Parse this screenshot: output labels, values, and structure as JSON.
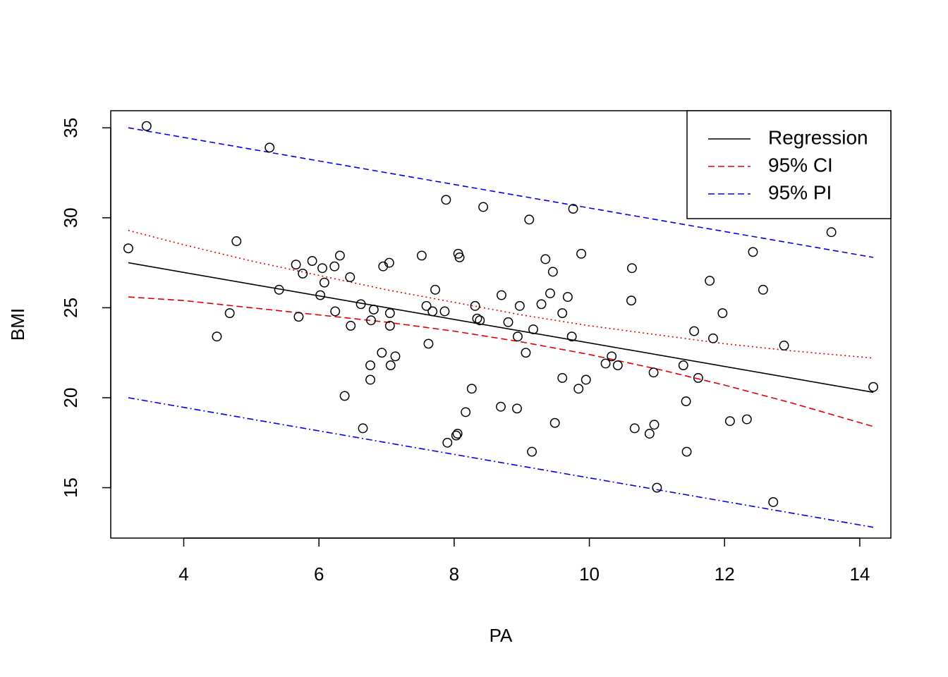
{
  "chart_data": {
    "type": "scatter",
    "xlabel": "PA",
    "ylabel": "BMI",
    "xlim": [
      2.92,
      14.46
    ],
    "ylim": [
      12.2,
      35.95
    ],
    "x_ticks": [
      4,
      6,
      8,
      10,
      12,
      14
    ],
    "y_ticks": [
      15,
      20,
      25,
      30,
      35
    ],
    "x_tick_labels": [
      "4",
      "6",
      "8",
      "10",
      "12",
      "14"
    ],
    "y_tick_labels": [
      "15",
      "20",
      "25",
      "30",
      "35"
    ],
    "legend": {
      "placement": "top-right",
      "entries": [
        {
          "label": "Regression",
          "color": "#000000",
          "dash": "solid"
        },
        {
          "label": "95% CI",
          "color": "#e00000",
          "dash": "dashed"
        },
        {
          "label": "95% PI",
          "color": "#0000e0",
          "dash": "dashed"
        }
      ]
    },
    "points": [
      [
        3.18,
        28.3
      ],
      [
        3.45,
        35.1
      ],
      [
        4.49,
        23.4
      ],
      [
        4.68,
        24.7
      ],
      [
        4.78,
        28.7
      ],
      [
        5.27,
        33.9
      ],
      [
        5.41,
        26.0
      ],
      [
        5.66,
        27.4
      ],
      [
        5.7,
        24.5
      ],
      [
        5.76,
        26.9
      ],
      [
        5.9,
        27.6
      ],
      [
        6.02,
        25.7
      ],
      [
        6.05,
        27.2
      ],
      [
        6.08,
        26.4
      ],
      [
        6.23,
        27.3
      ],
      [
        6.24,
        24.8
      ],
      [
        6.31,
        27.9
      ],
      [
        6.38,
        20.1
      ],
      [
        6.46,
        26.7
      ],
      [
        6.47,
        24.0
      ],
      [
        6.62,
        25.2
      ],
      [
        6.65,
        18.3
      ],
      [
        6.76,
        21.8
      ],
      [
        6.76,
        21.0
      ],
      [
        6.77,
        24.3
      ],
      [
        6.81,
        24.9
      ],
      [
        6.93,
        22.5
      ],
      [
        6.95,
        27.3
      ],
      [
        7.04,
        27.5
      ],
      [
        7.05,
        24.7
      ],
      [
        7.05,
        24.0
      ],
      [
        7.06,
        21.8
      ],
      [
        7.13,
        22.3
      ],
      [
        7.52,
        27.9
      ],
      [
        7.59,
        25.1
      ],
      [
        7.62,
        23.0
      ],
      [
        7.68,
        24.8
      ],
      [
        7.72,
        26.0
      ],
      [
        7.86,
        24.8
      ],
      [
        7.88,
        31.0
      ],
      [
        7.9,
        17.5
      ],
      [
        8.03,
        17.9
      ],
      [
        8.05,
        18.0
      ],
      [
        8.06,
        28.0
      ],
      [
        8.08,
        27.8
      ],
      [
        8.17,
        19.2
      ],
      [
        8.26,
        20.5
      ],
      [
        8.31,
        25.1
      ],
      [
        8.34,
        24.4
      ],
      [
        8.38,
        24.3
      ],
      [
        8.43,
        30.6
      ],
      [
        8.69,
        19.5
      ],
      [
        8.7,
        25.7
      ],
      [
        8.8,
        24.2
      ],
      [
        8.93,
        19.4
      ],
      [
        8.94,
        23.4
      ],
      [
        8.97,
        25.1
      ],
      [
        9.06,
        22.5
      ],
      [
        9.11,
        29.9
      ],
      [
        9.15,
        17.0
      ],
      [
        9.17,
        23.8
      ],
      [
        9.29,
        25.2
      ],
      [
        9.35,
        27.7
      ],
      [
        9.42,
        25.8
      ],
      [
        9.46,
        27.0
      ],
      [
        9.49,
        18.6
      ],
      [
        9.6,
        24.7
      ],
      [
        9.6,
        21.1
      ],
      [
        9.68,
        25.6
      ],
      [
        9.74,
        23.4
      ],
      [
        9.76,
        30.5
      ],
      [
        9.84,
        20.5
      ],
      [
        9.88,
        28.0
      ],
      [
        9.95,
        21.0
      ],
      [
        10.24,
        21.9
      ],
      [
        10.33,
        22.3
      ],
      [
        10.42,
        21.8
      ],
      [
        10.62,
        25.4
      ],
      [
        10.63,
        27.2
      ],
      [
        10.67,
        18.3
      ],
      [
        10.89,
        18.0
      ],
      [
        10.95,
        21.4
      ],
      [
        10.96,
        18.5
      ],
      [
        11.0,
        15.0
      ],
      [
        11.39,
        21.8
      ],
      [
        11.43,
        19.8
      ],
      [
        11.44,
        17.0
      ],
      [
        11.55,
        23.7
      ],
      [
        11.61,
        21.1
      ],
      [
        11.78,
        26.5
      ],
      [
        11.83,
        23.3
      ],
      [
        11.97,
        24.7
      ],
      [
        12.08,
        18.7
      ],
      [
        12.33,
        18.8
      ],
      [
        12.42,
        28.1
      ],
      [
        12.57,
        26.0
      ],
      [
        12.72,
        14.2
      ],
      [
        12.88,
        22.9
      ],
      [
        13.58,
        29.2
      ],
      [
        14.2,
        20.6
      ]
    ],
    "regression_line": {
      "x": [
        3.18,
        14.2
      ],
      "y": [
        27.5,
        20.3
      ],
      "color": "#000000"
    },
    "ci_upper": {
      "x": [
        3.18,
        4.0,
        5.0,
        6.0,
        7.0,
        8.0,
        9.0,
        10.0,
        11.0,
        12.0,
        13.0,
        14.2
      ],
      "y": [
        29.3,
        28.5,
        27.6,
        26.8,
        26.0,
        25.3,
        24.6,
        24.0,
        23.5,
        23.0,
        22.6,
        22.2
      ],
      "color": "#e00000"
    },
    "ci_lower": {
      "x": [
        3.18,
        4.0,
        5.0,
        6.0,
        7.0,
        8.0,
        9.0,
        10.0,
        11.0,
        12.0,
        13.0,
        14.2
      ],
      "y": [
        25.6,
        25.4,
        25.0,
        24.6,
        24.2,
        23.7,
        23.1,
        22.4,
        21.6,
        20.7,
        19.7,
        18.4
      ],
      "color": "#e00000"
    },
    "pi_upper": {
      "x": [
        3.18,
        14.2
      ],
      "y": [
        35.0,
        27.8
      ],
      "color": "#0000e0"
    },
    "pi_lower": {
      "x": [
        3.18,
        14.2
      ],
      "y": [
        20.0,
        12.8
      ],
      "color": "#0000e0"
    }
  }
}
